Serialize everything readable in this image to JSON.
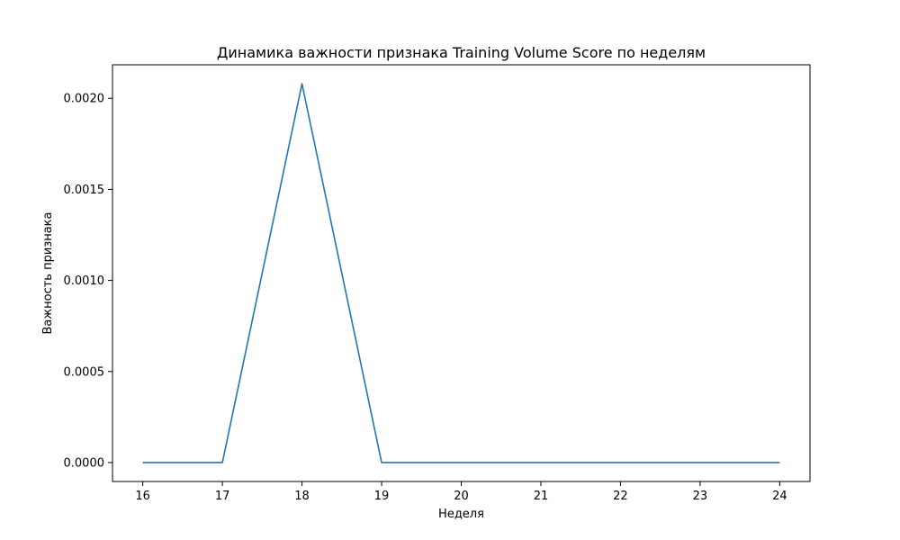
{
  "chart_data": {
    "type": "line",
    "title": "Динамика важности признака Training Volume Score по неделям",
    "xlabel": "Неделя",
    "ylabel": "Важность признака",
    "x": [
      16,
      17,
      18,
      19,
      20,
      21,
      22,
      23,
      24
    ],
    "series": [
      {
        "values": [
          0,
          0,
          0.00208,
          0,
          0,
          0,
          0,
          0,
          0
        ]
      }
    ],
    "xlim": [
      15.62,
      24.38
    ],
    "ylim": [
      -0.000104,
      0.002184
    ],
    "xticks": [
      "16",
      "17",
      "18",
      "19",
      "20",
      "21",
      "22",
      "23",
      "24"
    ],
    "yticks": [
      "0.0000",
      "0.0005",
      "0.0010",
      "0.0015",
      "0.0020"
    ],
    "ytick_values": [
      0,
      0.0005,
      0.001,
      0.0015,
      0.002
    ],
    "grid": false,
    "line_color": "#1f77b4"
  }
}
